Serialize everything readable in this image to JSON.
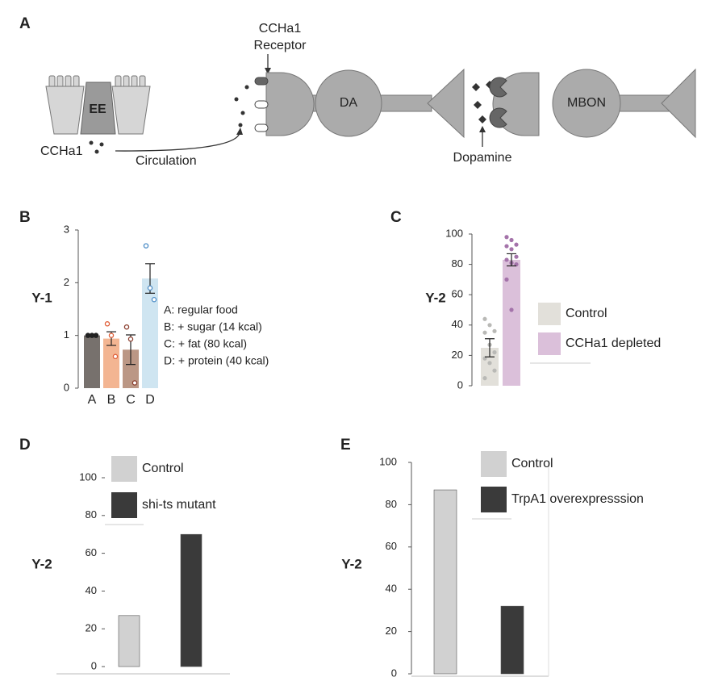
{
  "panel_labels": [
    "A",
    "B",
    "C",
    "D",
    "E"
  ],
  "diagram": {
    "cell": "EE",
    "hormone": "CCHa1",
    "route": "Circulation",
    "receptor": [
      "CCHa1",
      "Receptor"
    ],
    "neuron_1": "DA",
    "neuron_2": "MBON",
    "transmitter": "Dopamine"
  },
  "chart_data": [
    {
      "type": "bar",
      "y_label": "Y-1",
      "categories": [
        "A",
        "B",
        "C",
        "D"
      ],
      "values": [
        1.0,
        0.94,
        0.73,
        2.08
      ],
      "errors": [
        0.01,
        0.13,
        0.28,
        0.28
      ],
      "points": [
        [
          1,
          1,
          1
        ],
        [
          1.22,
          1.0,
          0.6
        ],
        [
          1.16,
          0.93,
          0.1
        ],
        [
          2.7,
          1.9,
          1.68
        ]
      ],
      "colors": [
        "#77716d",
        "#f3b592",
        "#bb9785",
        "#cfe5f1"
      ],
      "point_colors": [
        "#222222",
        "#e0603a",
        "#8a3c2c",
        "#4a8bc6"
      ],
      "ylim": [
        0,
        3
      ],
      "yticks": [
        0,
        1,
        2,
        3
      ],
      "annotations": [
        "A: regular food",
        "B: + sugar (14 kcal)",
        "C: + fat (80 kcal)",
        "D: + protein (40 kcal)"
      ]
    },
    {
      "type": "bar",
      "y_label": "Y-2",
      "ylim": [
        0,
        100
      ],
      "yticks": [
        0,
        20,
        40,
        60,
        80,
        100
      ],
      "series": [
        {
          "name": "Control",
          "color": "#e2e0da",
          "point_color": "#b9b9b6",
          "values": [
            25
          ],
          "errors": [
            6
          ],
          "points": [
            44,
            40,
            36,
            35,
            27,
            22,
            18,
            15,
            10,
            5
          ]
        },
        {
          "name": "CCHa1 depleted",
          "color": "#dbc0da",
          "point_color": "#a473aa",
          "values": [
            83
          ],
          "errors": [
            4
          ],
          "points": [
            98,
            96,
            93,
            92,
            90,
            85,
            83,
            81,
            80,
            70,
            50
          ]
        }
      ]
    },
    {
      "type": "bar",
      "y_label": "Y-2",
      "ylim": [
        0,
        100
      ],
      "yticks": [
        0,
        20,
        40,
        60,
        80,
        100
      ],
      "series": [
        {
          "name": "Control",
          "color": "#d1d1d1",
          "values": [
            27
          ]
        },
        {
          "name": "shi-ts mutant",
          "color": "#3a3a3a",
          "values": [
            70
          ]
        }
      ]
    },
    {
      "type": "bar",
      "y_label": "Y-2",
      "ylim": [
        0,
        100
      ],
      "yticks": [
        0,
        20,
        40,
        60,
        80,
        100
      ],
      "series": [
        {
          "name": "Control",
          "color": "#d1d1d1",
          "values": [
            87
          ]
        },
        {
          "name": "TrpA1 overexpresssion",
          "color": "#3a3a3a",
          "values": [
            32
          ]
        }
      ]
    }
  ]
}
